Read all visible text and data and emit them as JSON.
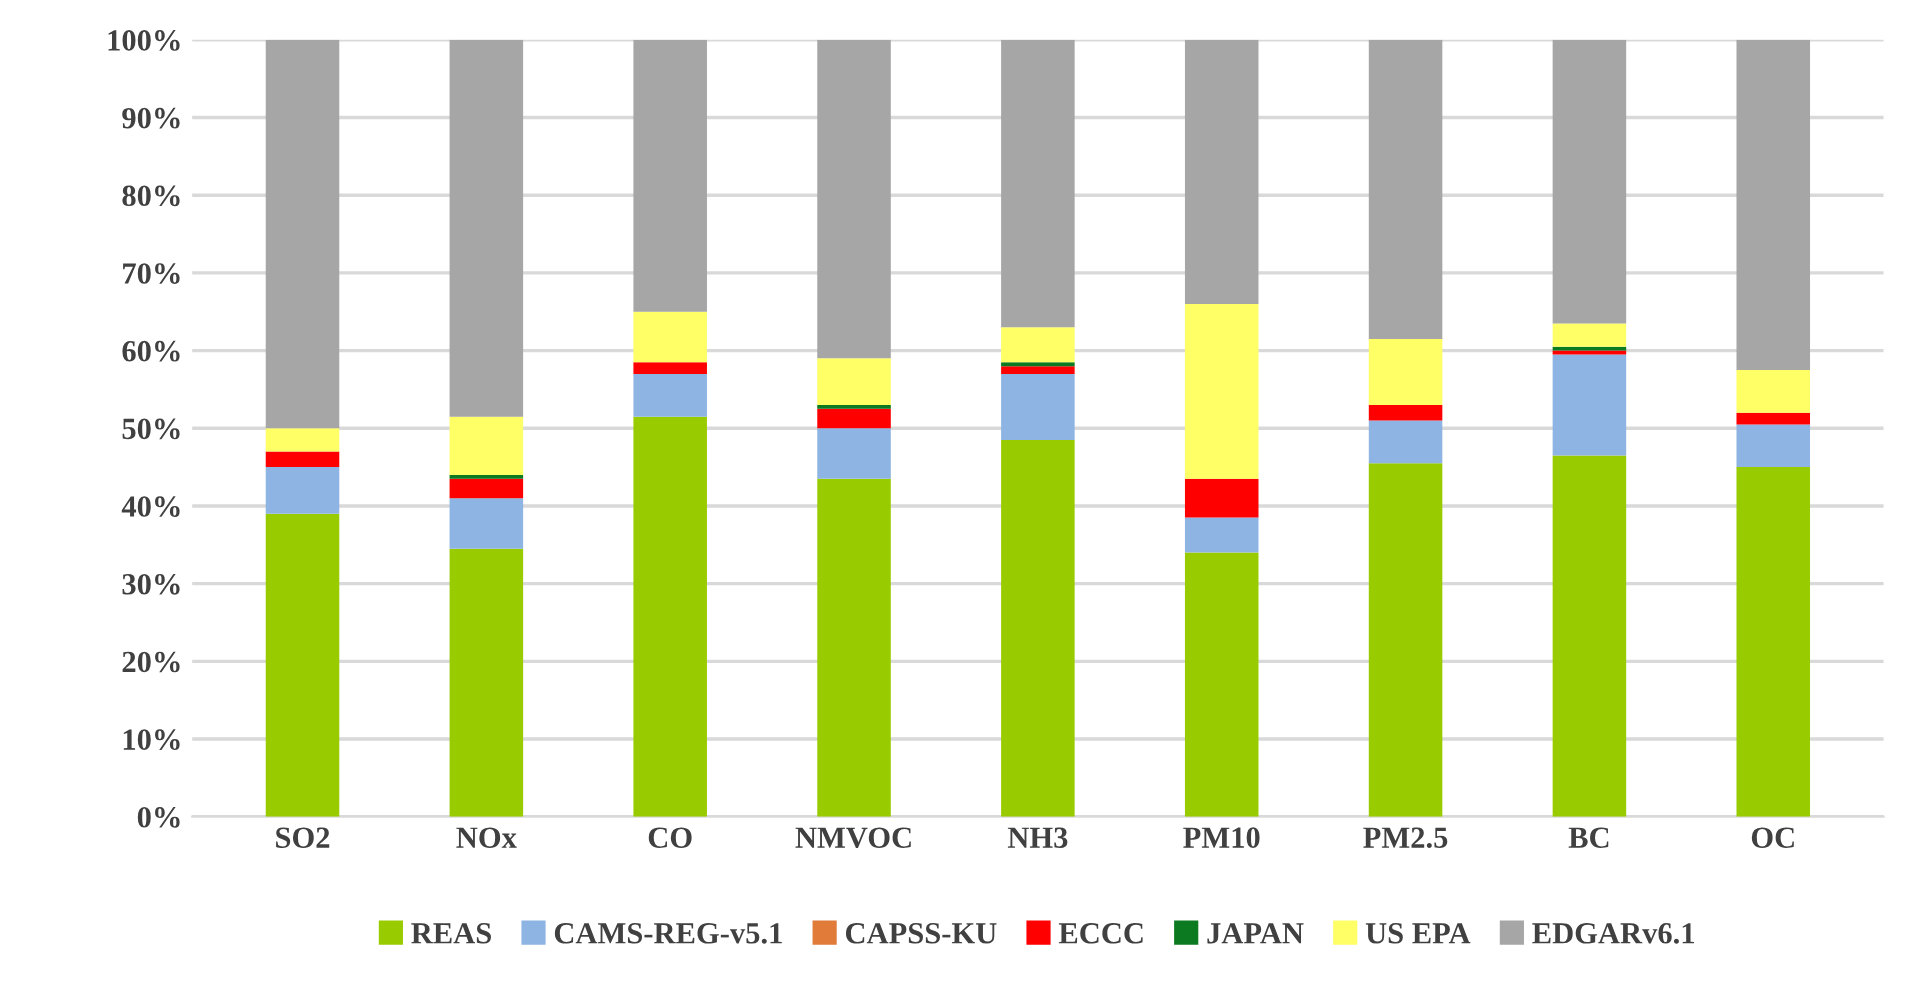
{
  "chart_data": {
    "type": "bar",
    "stacked": true,
    "categories": [
      "SO2",
      "NOx",
      "CO",
      "NMVOC",
      "NH3",
      "PM10",
      "PM2.5",
      "BC",
      "OC"
    ],
    "series": [
      {
        "name": "REAS",
        "color": "#99cc00",
        "values": [
          39,
          34.5,
          51.5,
          43.5,
          48.5,
          34,
          45.5,
          46.5,
          45
        ]
      },
      {
        "name": "CAMS-REG-v5.1",
        "color": "#8db4e2",
        "values": [
          6,
          6.5,
          5.5,
          6.5,
          8.5,
          4.5,
          5.5,
          13,
          5.5
        ]
      },
      {
        "name": "CAPSS-KU",
        "color": "#e07b39",
        "values": [
          0,
          0,
          0,
          0,
          0,
          0,
          0,
          0,
          0
        ]
      },
      {
        "name": "ECCC",
        "color": "#ff0000",
        "values": [
          2,
          2.5,
          1.5,
          2.5,
          1,
          5,
          2,
          0.5,
          1.5
        ]
      },
      {
        "name": "JAPAN",
        "color": "#0b7a20",
        "values": [
          0,
          0.5,
          0,
          0.5,
          0.5,
          0,
          0,
          0.5,
          0
        ]
      },
      {
        "name": "US EPA",
        "color": "#ffff66",
        "values": [
          3,
          7.5,
          6.5,
          6,
          4.5,
          22.5,
          8.5,
          3,
          5.5
        ]
      },
      {
        "name": "EDGARv6.1",
        "color": "#a6a6a6",
        "values": [
          50,
          48.5,
          35,
          41,
          37,
          34,
          38.5,
          36.5,
          42.5
        ]
      }
    ],
    "ylim": [
      0,
      100
    ],
    "yticks": [
      {
        "value": 0,
        "label": "0%"
      },
      {
        "value": 10,
        "label": "10%"
      },
      {
        "value": 20,
        "label": "20%"
      },
      {
        "value": 30,
        "label": "30%"
      },
      {
        "value": 40,
        "label": "40%"
      },
      {
        "value": 50,
        "label": "50%"
      },
      {
        "value": 60,
        "label": "60%"
      },
      {
        "value": 70,
        "label": "70%"
      },
      {
        "value": 80,
        "label": "80%"
      },
      {
        "value": 90,
        "label": "90%"
      },
      {
        "value": 100,
        "label": "100%"
      }
    ],
    "grid": "y",
    "legend": "bottom"
  }
}
